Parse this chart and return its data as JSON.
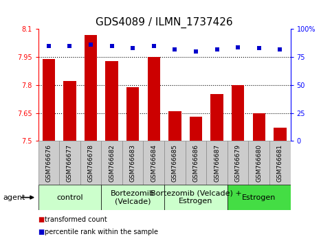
{
  "title": "GDS4089 / ILMN_1737426",
  "samples": [
    "GSM766676",
    "GSM766677",
    "GSM766678",
    "GSM766682",
    "GSM766683",
    "GSM766684",
    "GSM766685",
    "GSM766686",
    "GSM766687",
    "GSM766679",
    "GSM766680",
    "GSM766681"
  ],
  "bar_values": [
    7.94,
    7.82,
    8.07,
    7.93,
    7.79,
    7.95,
    7.66,
    7.63,
    7.75,
    7.8,
    7.65,
    7.57
  ],
  "percentile_values": [
    85,
    85,
    86,
    85,
    83,
    85,
    82,
    80,
    82,
    84,
    83,
    82
  ],
  "bar_color": "#cc0000",
  "dot_color": "#0000cc",
  "ymin": 7.5,
  "ymax": 8.1,
  "y2min": 0,
  "y2max": 100,
  "yticks": [
    7.5,
    7.65,
    7.8,
    7.95,
    8.1
  ],
  "ytick_labels": [
    "7.5",
    "7.65",
    "7.8",
    "7.95",
    "8.1"
  ],
  "y2ticks": [
    0,
    25,
    50,
    75,
    100
  ],
  "y2tick_labels": [
    "0",
    "25",
    "50",
    "75",
    "100%"
  ],
  "grid_yticks": [
    7.65,
    7.8,
    7.95
  ],
  "groups": [
    {
      "label": "control",
      "start": 0,
      "end": 2,
      "color": "#ccffcc"
    },
    {
      "label": "Bortezomib\n(Velcade)",
      "start": 3,
      "end": 5,
      "color": "#ccffcc"
    },
    {
      "label": "Bortezomib (Velcade) +\nEstrogen",
      "start": 6,
      "end": 8,
      "color": "#ccffcc"
    },
    {
      "label": "Estrogen",
      "start": 9,
      "end": 11,
      "color": "#44dd44"
    }
  ],
  "group_borders": [
    -0.5,
    2.5,
    5.5,
    8.5,
    11.5
  ],
  "agent_label": "agent",
  "legend_bar_label": "transformed count",
  "legend_dot_label": "percentile rank within the sample",
  "title_fontsize": 11,
  "tick_fontsize": 7,
  "sample_fontsize": 6.5,
  "group_fontsize": 8,
  "bar_width": 0.6,
  "cell_bg": "#cccccc",
  "cell_border": "#888888"
}
